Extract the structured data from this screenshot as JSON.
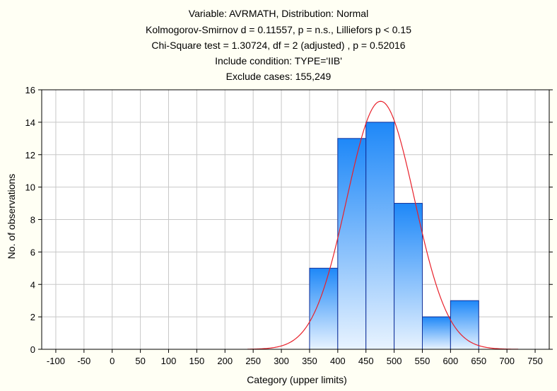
{
  "chart_data": {
    "type": "bar",
    "title_lines": [
      "Variable: AVRMATH, Distribution: Normal",
      "Kolmogorov-Smirnov d = 0.11557, p = n.s., Lilliefors p < 0.15",
      "Chi-Square test = 1.30724, df = 2 (adjusted) , p = 0.52016",
      "Include condition: TYPE='IIB'",
      "Exclude cases: 155,249"
    ],
    "xlabel": "Category (upper limits)",
    "ylabel": "No. of observations",
    "xlim": [
      -125,
      775
    ],
    "ylim": [
      0,
      16
    ],
    "x_ticks": [
      -100,
      -50,
      0,
      50,
      100,
      150,
      200,
      250,
      300,
      350,
      400,
      450,
      500,
      550,
      600,
      650,
      700,
      750
    ],
    "y_ticks": [
      0,
      2,
      4,
      6,
      8,
      10,
      12,
      14,
      16
    ],
    "grid": true,
    "bins": [
      {
        "lower": 350,
        "upper": 400,
        "count": 5
      },
      {
        "lower": 400,
        "upper": 450,
        "count": 13
      },
      {
        "lower": 450,
        "upper": 500,
        "count": 14
      },
      {
        "lower": 500,
        "upper": 550,
        "count": 9
      },
      {
        "lower": 550,
        "upper": 600,
        "count": 2
      },
      {
        "lower": 600,
        "upper": 650,
        "count": 3
      }
    ],
    "normal_fit": {
      "mean": 476,
      "sd": 60,
      "n": 46,
      "bin_width": 50,
      "range": [
        240,
        720
      ]
    },
    "colors": {
      "bar_top": "#1e88f8",
      "bar_bottom": "#e8f3ff",
      "bar_stroke": "#10309a",
      "curve": "#e8202a",
      "grid": "#c8c8c8",
      "plot_bg": "#ffffff",
      "page_bg": "#fffff4"
    }
  }
}
